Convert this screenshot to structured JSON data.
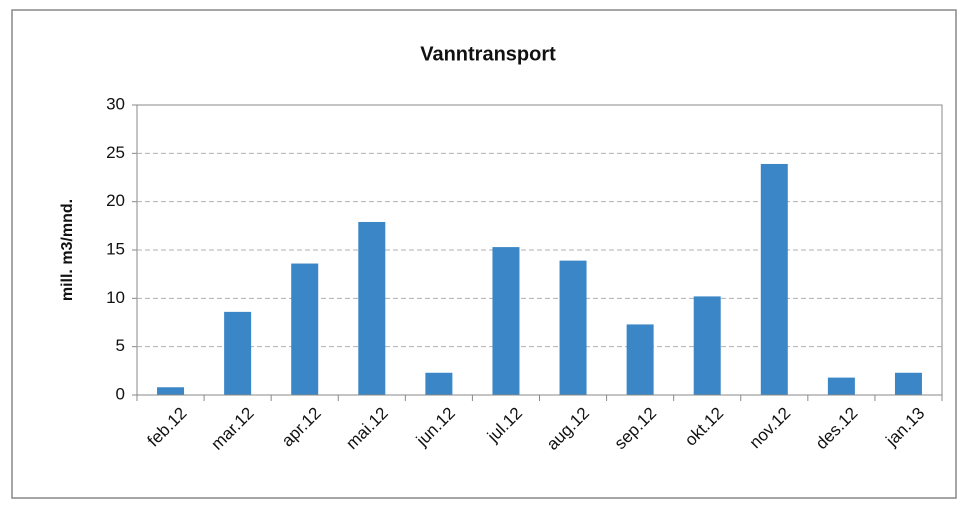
{
  "chart_data": {
    "type": "bar",
    "title": "Vanntransport",
    "y_label": "mill. m3/mnd.",
    "categories": [
      "feb.12",
      "mar.12",
      "apr.12",
      "mai.12",
      "jun.12",
      "jul.12",
      "aug.12",
      "sep.12",
      "okt.12",
      "nov.12",
      "des.12",
      "jan.13"
    ],
    "values": [
      0.8,
      8.6,
      13.6,
      17.9,
      2.3,
      15.3,
      13.9,
      7.3,
      10.2,
      23.9,
      1.8,
      2.3
    ],
    "color": "#3a86c6",
    "ylim": [
      0,
      30
    ],
    "yticks": [
      0,
      5,
      10,
      15,
      20,
      25,
      30
    ],
    "grid": true
  }
}
